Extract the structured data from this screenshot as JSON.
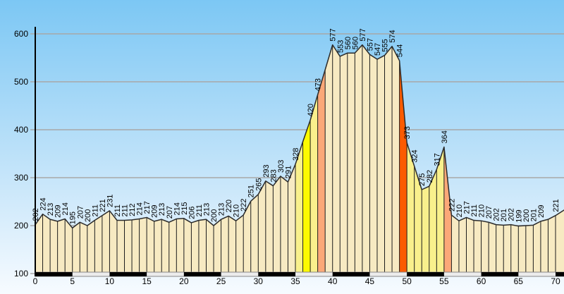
{
  "chart_data": {
    "type": "area",
    "title": "",
    "xlabel": "",
    "ylabel": "",
    "x_unit": "km",
    "xlim": [
      0,
      71.2
    ],
    "ylim": [
      100,
      620
    ],
    "x_ticks": [
      0,
      5,
      10,
      15,
      20,
      25,
      30,
      35,
      40,
      45,
      50,
      55,
      60,
      65,
      70
    ],
    "y_ticks": [
      100,
      200,
      300,
      400,
      500,
      600
    ],
    "grid": "horizontal",
    "legend": "none",
    "values": [
      202,
      224,
      213,
      209,
      214,
      195,
      207,
      200,
      211,
      221,
      231,
      211,
      211,
      212,
      214,
      217,
      209,
      213,
      207,
      214,
      215,
      206,
      211,
      213,
      200,
      213,
      220,
      210,
      222,
      251,
      265,
      293,
      283,
      303,
      291,
      328,
      375,
      420,
      473,
      525,
      577,
      553,
      560,
      560,
      577,
      557,
      547,
      555,
      574,
      544,
      373,
      324,
      275,
      282,
      317,
      364,
      222,
      210,
      217,
      211,
      210,
      207,
      202,
      201,
      202,
      199,
      200,
      201,
      209,
      213,
      221
    ],
    "unlabeled_indices": [
      36,
      39,
      69
    ],
    "edge_point": {
      "km": 71.2,
      "ele": 233
    },
    "segment_colors": {
      "35": "#F9F08C",
      "36": "#FDFA00",
      "37": "#F9F08C",
      "38": "#FBA878",
      "49": "#FB5B00",
      "50": "#F9F08C",
      "51": "#F9F08C",
      "52": "#F9F08C",
      "53": "#F9F08C",
      "54": "#F9F08C",
      "55": "#FBA878"
    },
    "colors": {
      "fill": "#F7EAC2",
      "outline": "#2b2b2b",
      "bar_line": "#1c1c1c",
      "gridline": "#A8A8A8",
      "axis": "#000000",
      "sky_top": "#7CC7F4",
      "sky_mid": "#C8E6FA",
      "sky_bottom": "#F7FBFF",
      "stripe_black": "#000000",
      "stripe_white": "#ECECEC",
      "stripe_border": "#888888"
    },
    "stripe_interval_km": 5
  }
}
